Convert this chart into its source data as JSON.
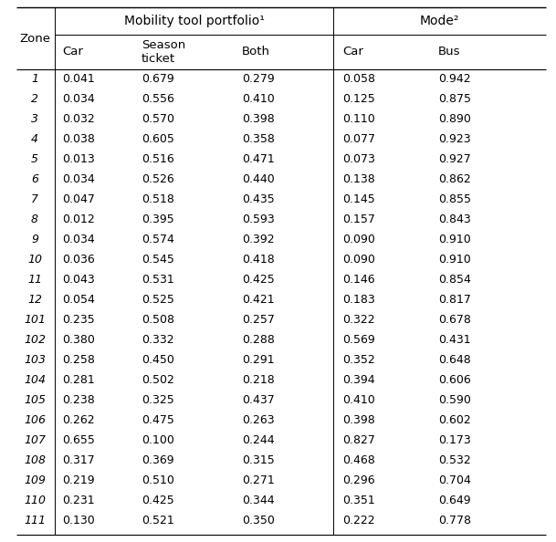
{
  "group1_label": "Mobility tool portfolio¹",
  "group2_label": "Mode²",
  "zones": [
    "1",
    "2",
    "3",
    "4",
    "5",
    "6",
    "7",
    "8",
    "9",
    "10",
    "11",
    "12",
    "101",
    "102",
    "103",
    "104",
    "105",
    "106",
    "107",
    "108",
    "109",
    "110",
    "111"
  ],
  "data": [
    [
      0.041,
      0.679,
      0.279,
      0.058,
      0.942
    ],
    [
      0.034,
      0.556,
      0.41,
      0.125,
      0.875
    ],
    [
      0.032,
      0.57,
      0.398,
      0.11,
      0.89
    ],
    [
      0.038,
      0.605,
      0.358,
      0.077,
      0.923
    ],
    [
      0.013,
      0.516,
      0.471,
      0.073,
      0.927
    ],
    [
      0.034,
      0.526,
      0.44,
      0.138,
      0.862
    ],
    [
      0.047,
      0.518,
      0.435,
      0.145,
      0.855
    ],
    [
      0.012,
      0.395,
      0.593,
      0.157,
      0.843
    ],
    [
      0.034,
      0.574,
      0.392,
      0.09,
      0.91
    ],
    [
      0.036,
      0.545,
      0.418,
      0.09,
      0.91
    ],
    [
      0.043,
      0.531,
      0.425,
      0.146,
      0.854
    ],
    [
      0.054,
      0.525,
      0.421,
      0.183,
      0.817
    ],
    [
      0.235,
      0.508,
      0.257,
      0.322,
      0.678
    ],
    [
      0.38,
      0.332,
      0.288,
      0.569,
      0.431
    ],
    [
      0.258,
      0.45,
      0.291,
      0.352,
      0.648
    ],
    [
      0.281,
      0.502,
      0.218,
      0.394,
      0.606
    ],
    [
      0.238,
      0.325,
      0.437,
      0.41,
      0.59
    ],
    [
      0.262,
      0.475,
      0.263,
      0.398,
      0.602
    ],
    [
      0.655,
      0.1,
      0.244,
      0.827,
      0.173
    ],
    [
      0.317,
      0.369,
      0.315,
      0.468,
      0.532
    ],
    [
      0.219,
      0.51,
      0.271,
      0.296,
      0.704
    ],
    [
      0.231,
      0.425,
      0.344,
      0.351,
      0.649
    ],
    [
      0.13,
      0.521,
      0.35,
      0.222,
      0.778
    ]
  ],
  "bg_color": "#ffffff",
  "text_color": "#000000"
}
